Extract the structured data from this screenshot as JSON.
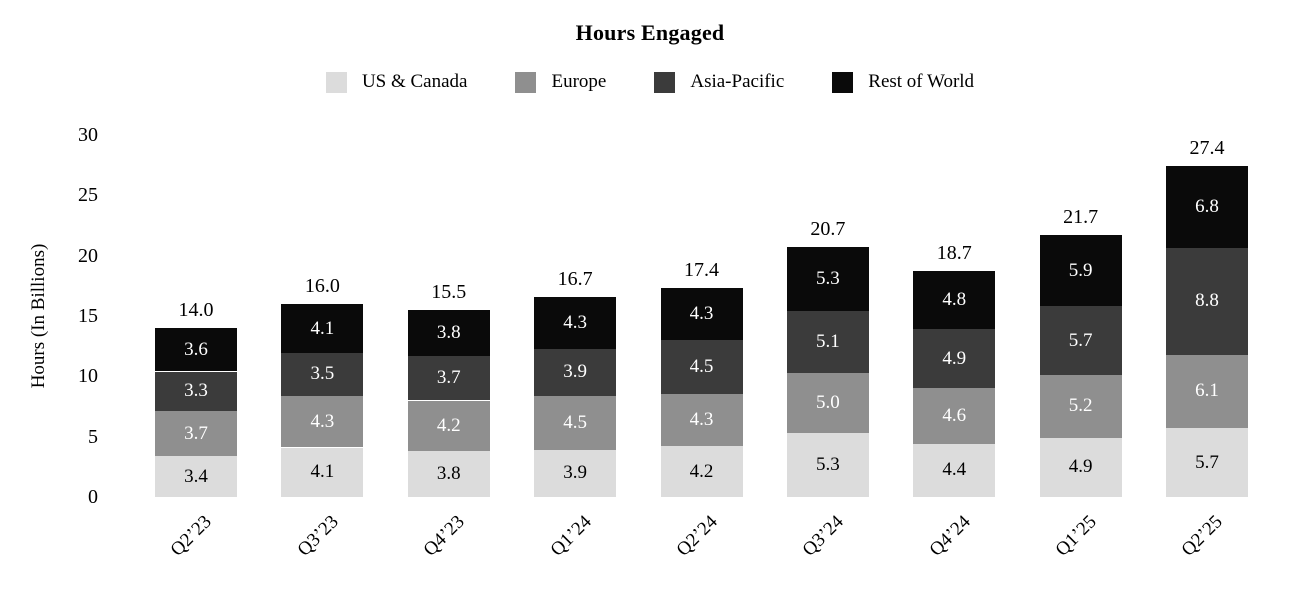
{
  "chart_data": {
    "type": "bar",
    "stacked": true,
    "title": "Hours Engaged",
    "xlabel": "",
    "ylabel": "Hours (In Billions)",
    "ylim": [
      0,
      30
    ],
    "yticks": [
      0,
      5,
      10,
      15,
      20,
      25,
      30
    ],
    "grid": false,
    "legend_position": "top",
    "categories": [
      "Q2’23",
      "Q3’23",
      "Q4’23",
      "Q1’24",
      "Q2’24",
      "Q3’24",
      "Q4’24",
      "Q1’25",
      "Q2’25"
    ],
    "series": [
      {
        "name": "US & Canada",
        "color": "#dcdcdc",
        "label_color": "#000000",
        "values": [
          3.4,
          4.1,
          3.8,
          3.9,
          4.2,
          5.3,
          4.4,
          4.9,
          5.7
        ]
      },
      {
        "name": "Europe",
        "color": "#8f8f8f",
        "label_color": "#ffffff",
        "values": [
          3.7,
          4.3,
          4.2,
          4.5,
          4.3,
          5.0,
          4.6,
          5.2,
          6.1
        ]
      },
      {
        "name": "Asia-Pacific",
        "color": "#3b3b3b",
        "label_color": "#ffffff",
        "values": [
          3.3,
          3.5,
          3.7,
          3.9,
          4.5,
          5.1,
          4.9,
          5.7,
          8.8
        ]
      },
      {
        "name": "Rest of World",
        "color": "#0a0a0a",
        "label_color": "#ffffff",
        "values": [
          3.6,
          4.1,
          3.8,
          4.3,
          4.3,
          5.3,
          4.8,
          5.9,
          6.8
        ]
      }
    ],
    "totals": [
      "14.0",
      "16.0",
      "15.5",
      "16.7",
      "17.4",
      "20.7",
      "18.7",
      "21.7",
      "27.4"
    ]
  }
}
